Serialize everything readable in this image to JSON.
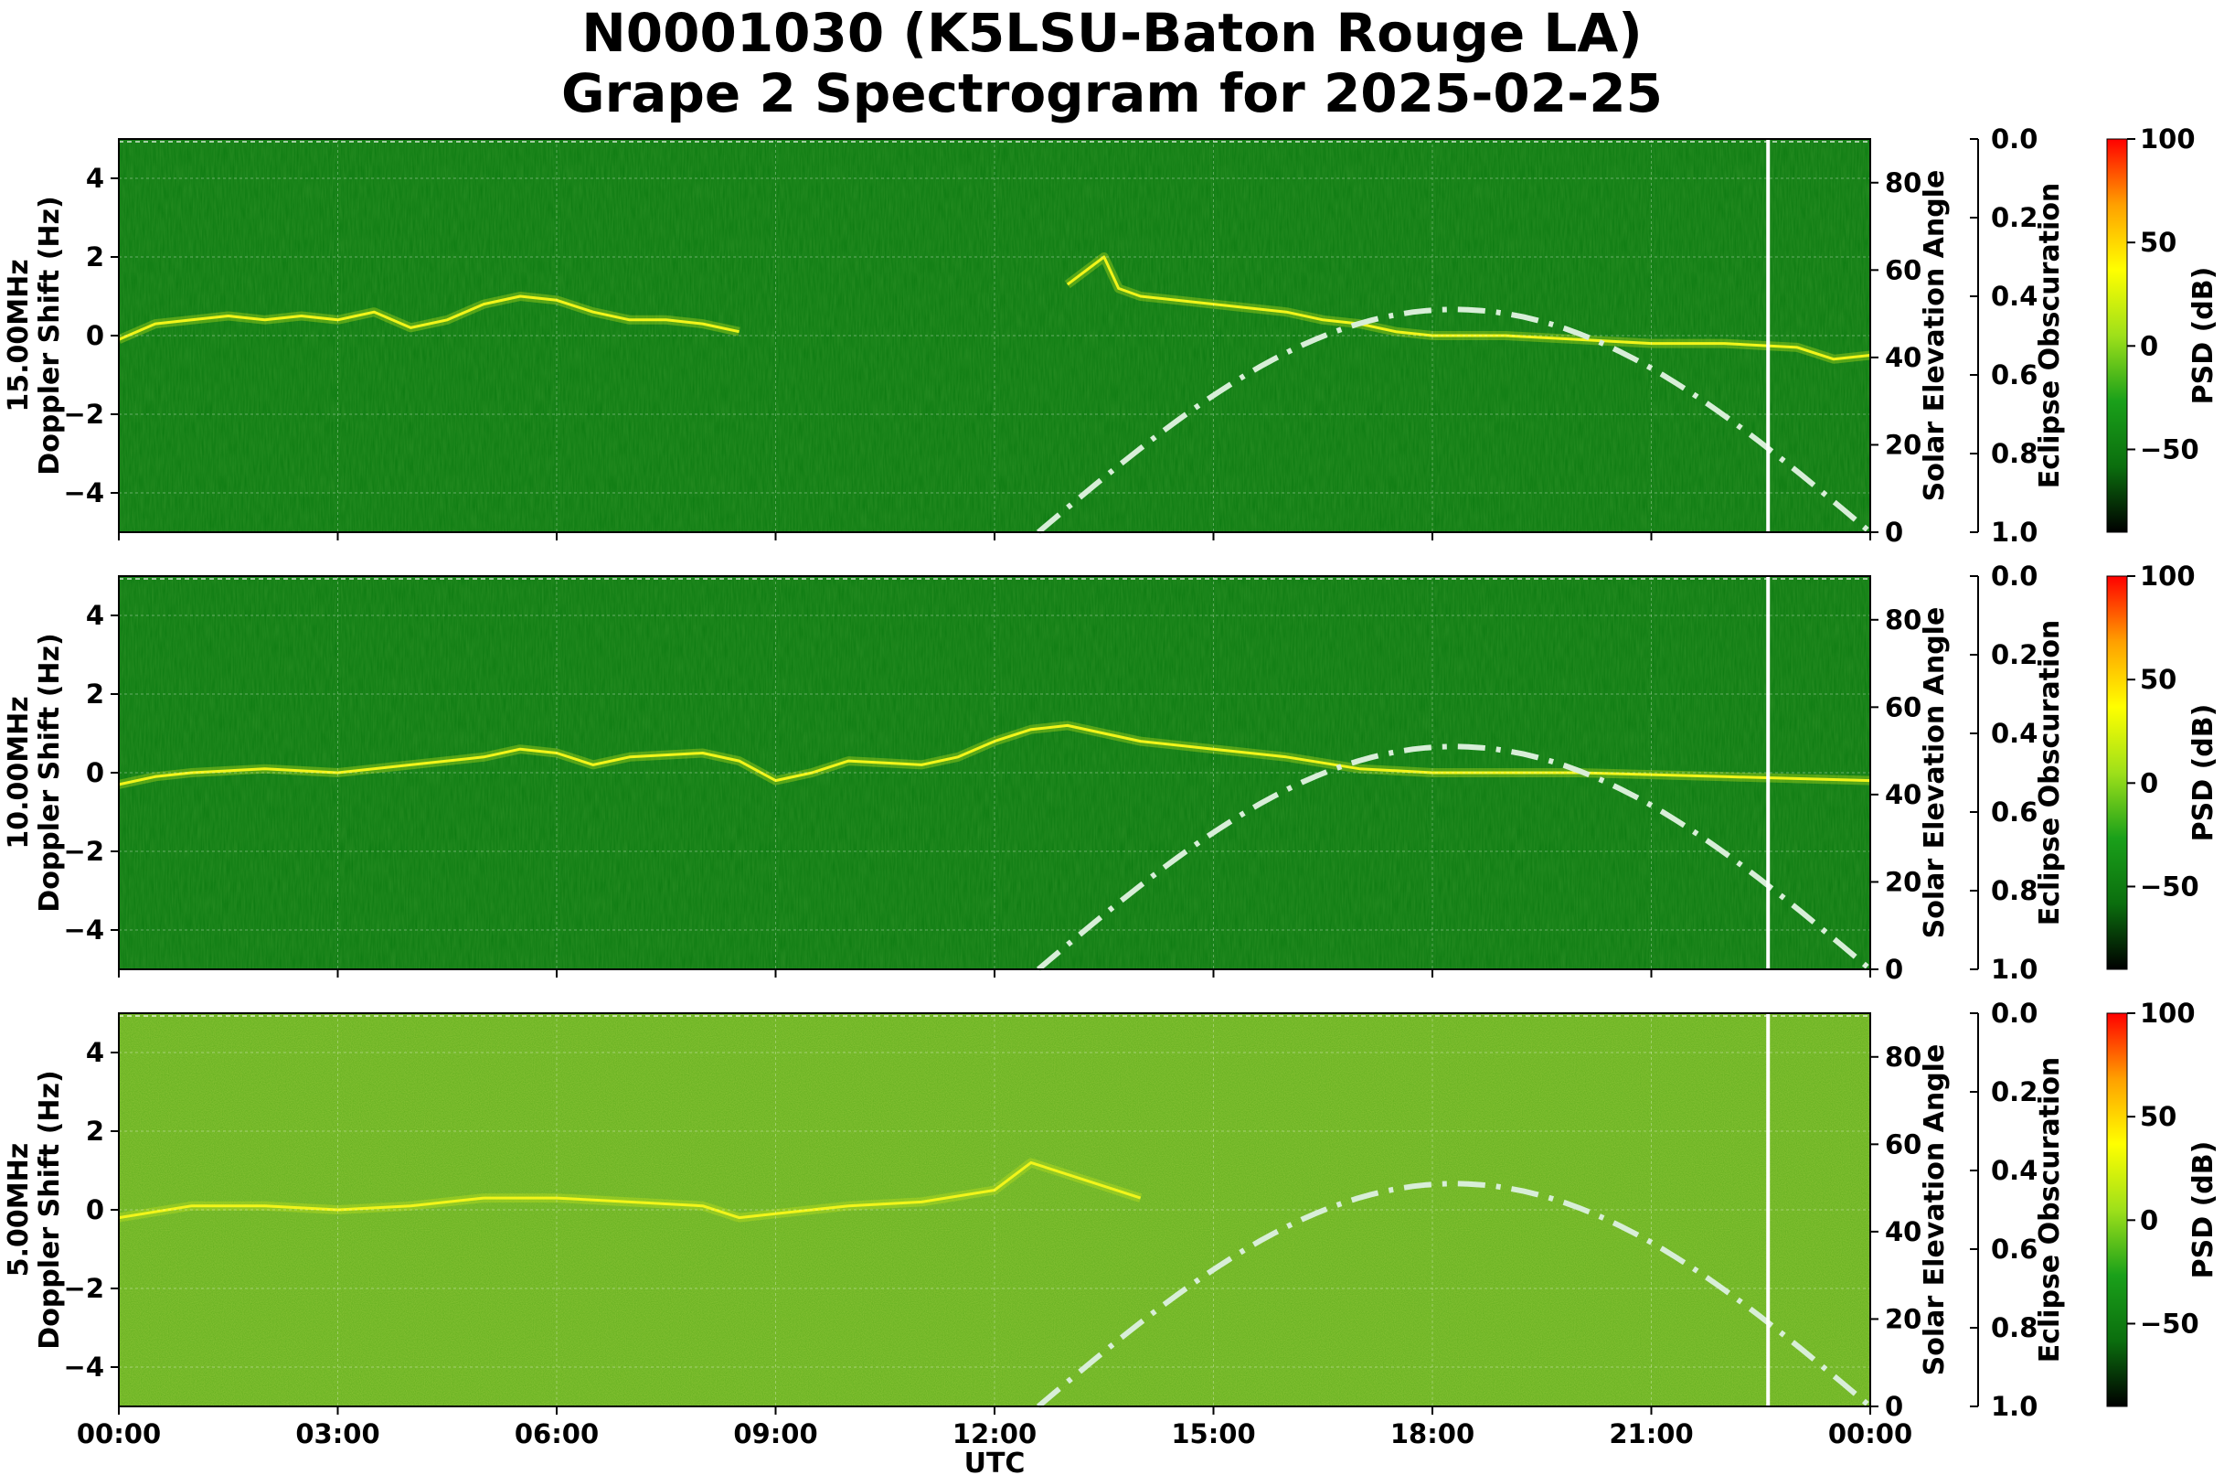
{
  "title_line1": "N0001030 (K5LSU-Baton Rouge LA)",
  "title_line2": "Grape 2 Spectrogram for 2025-02-25",
  "chart_data": [
    {
      "type": "heatmap",
      "panel": "15.00MHz",
      "ylabel_line1": "15.00MHz",
      "ylabel_line2": "Doppler Shift (Hz)",
      "xlabel": "",
      "x_range": [
        "00:00",
        "24:00"
      ],
      "ylim": [
        -5,
        5
      ],
      "y_ticks": [
        4,
        2,
        0,
        -2,
        -4
      ],
      "x_ticks": [
        "00:00",
        "03:00",
        "06:00",
        "09:00",
        "12:00",
        "15:00",
        "18:00",
        "21:00",
        "00:00"
      ],
      "background_color": "#0b7a10",
      "doppler_trace": [
        [
          0.0,
          -0.1
        ],
        [
          0.5,
          0.3
        ],
        [
          1.0,
          0.4
        ],
        [
          1.5,
          0.5
        ],
        [
          2.0,
          0.4
        ],
        [
          2.5,
          0.5
        ],
        [
          3.0,
          0.4
        ],
        [
          3.5,
          0.6
        ],
        [
          4.0,
          0.2
        ],
        [
          4.5,
          0.4
        ],
        [
          5.0,
          0.8
        ],
        [
          5.5,
          1.0
        ],
        [
          6.0,
          0.9
        ],
        [
          6.5,
          0.6
        ],
        [
          7.0,
          0.4
        ],
        [
          7.5,
          0.4
        ],
        [
          8.0,
          0.3
        ],
        [
          8.5,
          0.1
        ],
        [
          13.0,
          1.3
        ],
        [
          13.5,
          2.0
        ],
        [
          13.7,
          1.2
        ],
        [
          14.0,
          1.0
        ],
        [
          15.0,
          0.8
        ],
        [
          16.0,
          0.6
        ],
        [
          16.5,
          0.4
        ],
        [
          17.0,
          0.3
        ],
        [
          17.5,
          0.1
        ],
        [
          18.0,
          0.0
        ],
        [
          19.0,
          0.0
        ],
        [
          20.0,
          -0.1
        ],
        [
          21.0,
          -0.2
        ],
        [
          22.0,
          -0.2
        ],
        [
          23.0,
          -0.3
        ],
        [
          23.5,
          -0.6
        ],
        [
          24.0,
          -0.5
        ]
      ],
      "solar_elevation": {
        "ylabel": "Solar Elevation Angle",
        "ylim": [
          0,
          90
        ],
        "ticks": [
          0,
          20,
          40,
          60,
          80
        ],
        "sunrise_hr": 12.6,
        "peak_hr": 18.3,
        "sunset_hr": 24.0,
        "peak_deg": 51,
        "style": "dash-dot",
        "color": "#d8eed8"
      },
      "eclipse_obscuration": {
        "ylabel": "Eclipse Obscuration",
        "ylim": [
          1.0,
          0.0
        ],
        "ticks": [
          "0.0",
          "0.2",
          "0.4",
          "0.6",
          "0.8",
          "1.0"
        ]
      },
      "marker_line_hr": 22.6,
      "colorbar": {
        "label": "PSD (dB)",
        "range": [
          -90,
          100
        ],
        "ticks": [
          "100",
          "50",
          "0",
          "−50"
        ],
        "colors": [
          "#000000",
          "#0b6e0e",
          "#1aa01a",
          "#9ee01a",
          "#ffff00",
          "#ffa000",
          "#ff0000"
        ]
      }
    },
    {
      "type": "heatmap",
      "panel": "10.00MHz",
      "ylabel_line1": "10.00MHz",
      "ylabel_line2": "Doppler Shift (Hz)",
      "xlabel": "",
      "x_range": [
        "00:00",
        "24:00"
      ],
      "ylim": [
        -5,
        5
      ],
      "y_ticks": [
        4,
        2,
        0,
        -2,
        -4
      ],
      "x_ticks": [
        "00:00",
        "03:00",
        "06:00",
        "09:00",
        "12:00",
        "15:00",
        "18:00",
        "21:00",
        "00:00"
      ],
      "background_color": "#0b7a10",
      "doppler_trace": [
        [
          0.0,
          -0.3
        ],
        [
          0.5,
          -0.1
        ],
        [
          1.0,
          0.0
        ],
        [
          2.0,
          0.1
        ],
        [
          3.0,
          0.0
        ],
        [
          4.0,
          0.2
        ],
        [
          5.0,
          0.4
        ],
        [
          5.5,
          0.6
        ],
        [
          6.0,
          0.5
        ],
        [
          6.5,
          0.2
        ],
        [
          7.0,
          0.4
        ],
        [
          8.0,
          0.5
        ],
        [
          8.5,
          0.3
        ],
        [
          9.0,
          -0.2
        ],
        [
          9.5,
          0.0
        ],
        [
          10.0,
          0.3
        ],
        [
          11.0,
          0.2
        ],
        [
          11.5,
          0.4
        ],
        [
          12.0,
          0.8
        ],
        [
          12.5,
          1.1
        ],
        [
          13.0,
          1.2
        ],
        [
          14.0,
          0.8
        ],
        [
          15.0,
          0.6
        ],
        [
          16.0,
          0.4
        ],
        [
          17.0,
          0.1
        ],
        [
          18.0,
          0.0
        ],
        [
          20.0,
          0.0
        ],
        [
          22.0,
          -0.1
        ],
        [
          24.0,
          -0.2
        ]
      ],
      "solar_elevation": {
        "ylabel": "Solar Elevation Angle",
        "ylim": [
          0,
          90
        ],
        "ticks": [
          0,
          20,
          40,
          60,
          80
        ],
        "sunrise_hr": 12.6,
        "peak_hr": 18.3,
        "sunset_hr": 24.0,
        "peak_deg": 51,
        "style": "dash-dot",
        "color": "#d8eed8"
      },
      "eclipse_obscuration": {
        "ylabel": "Eclipse Obscuration",
        "ylim": [
          1.0,
          0.0
        ],
        "ticks": [
          "0.0",
          "0.2",
          "0.4",
          "0.6",
          "0.8",
          "1.0"
        ]
      },
      "marker_line_hr": 22.6,
      "colorbar": {
        "label": "PSD (dB)",
        "range": [
          -90,
          100
        ],
        "ticks": [
          "100",
          "50",
          "0",
          "−50"
        ],
        "colors": [
          "#000000",
          "#0b6e0e",
          "#1aa01a",
          "#9ee01a",
          "#ffff00",
          "#ffa000",
          "#ff0000"
        ]
      }
    },
    {
      "type": "heatmap",
      "panel": "5.00MHz",
      "ylabel_line1": "5.00MHz",
      "ylabel_line2": "Doppler Shift (Hz)",
      "xlabel": "UTC",
      "x_range": [
        "00:00",
        "24:00"
      ],
      "ylim": [
        -5,
        5
      ],
      "y_ticks": [
        4,
        2,
        0,
        -2,
        -4
      ],
      "x_ticks": [
        "00:00",
        "03:00",
        "06:00",
        "09:00",
        "12:00",
        "15:00",
        "18:00",
        "21:00",
        "00:00"
      ],
      "background_color": "#5fae1c",
      "doppler_trace": [
        [
          0.0,
          -0.2
        ],
        [
          1.0,
          0.1
        ],
        [
          2.0,
          0.1
        ],
        [
          3.0,
          0.0
        ],
        [
          4.0,
          0.1
        ],
        [
          5.0,
          0.3
        ],
        [
          6.0,
          0.3
        ],
        [
          7.0,
          0.2
        ],
        [
          8.0,
          0.1
        ],
        [
          8.5,
          -0.2
        ],
        [
          9.0,
          -0.1
        ],
        [
          10.0,
          0.1
        ],
        [
          11.0,
          0.2
        ],
        [
          12.0,
          0.5
        ],
        [
          12.5,
          1.2
        ],
        [
          13.0,
          0.9
        ],
        [
          13.5,
          0.6
        ],
        [
          14.0,
          0.3
        ]
      ],
      "solar_elevation": {
        "ylabel": "Solar Elevation Angle",
        "ylim": [
          0,
          90
        ],
        "ticks": [
          0,
          20,
          40,
          60,
          80
        ],
        "sunrise_hr": 12.6,
        "peak_hr": 18.3,
        "sunset_hr": 24.0,
        "peak_deg": 51,
        "style": "dash-dot",
        "color": "#d8eed8"
      },
      "eclipse_obscuration": {
        "ylabel": "Eclipse Obscuration",
        "ylim": [
          1.0,
          0.0
        ],
        "ticks": [
          "0.0",
          "0.2",
          "0.4",
          "0.6",
          "0.8",
          "1.0"
        ]
      },
      "marker_line_hr": 22.6,
      "colorbar": {
        "label": "PSD (dB)",
        "range": [
          -90,
          100
        ],
        "ticks": [
          "100",
          "50",
          "0",
          "−50"
        ],
        "colors": [
          "#000000",
          "#0b6e0e",
          "#1aa01a",
          "#9ee01a",
          "#ffff00",
          "#ffa000",
          "#ff0000"
        ]
      }
    }
  ]
}
